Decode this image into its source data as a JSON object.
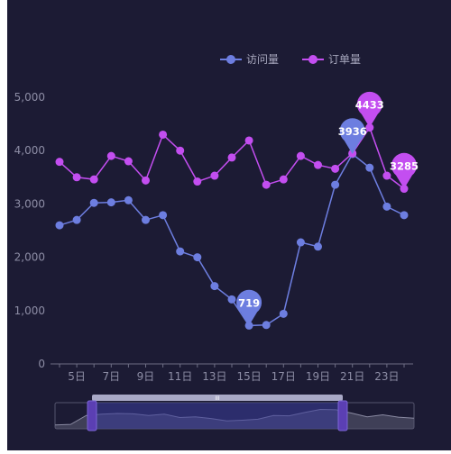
{
  "chart_data": {
    "type": "line",
    "title": "",
    "xlabel": "",
    "ylabel": "",
    "ylim": [
      0,
      5000
    ],
    "yticks": [
      0,
      1000,
      2000,
      3000,
      4000,
      5000
    ],
    "ytick_labels": [
      "0",
      "1,000",
      "2,000",
      "3,000",
      "4,000",
      "5,000"
    ],
    "days": [
      4,
      5,
      6,
      7,
      8,
      9,
      10,
      11,
      12,
      13,
      14,
      15,
      16,
      17,
      18,
      19,
      20,
      21,
      22,
      23,
      24
    ],
    "x_tick_days": [
      5,
      7,
      9,
      11,
      13,
      15,
      17,
      19,
      21,
      23
    ],
    "x_tick_labels": [
      "5日",
      "7日",
      "9日",
      "11日",
      "13日",
      "15日",
      "17日",
      "19日",
      "21日",
      "23日"
    ],
    "grid": false,
    "legend_position": "top-center",
    "series": [
      {
        "name": "访问量",
        "color": "#6d7ee0",
        "values": [
          2600,
          2700,
          3020,
          3030,
          3070,
          2700,
          2790,
          2110,
          2000,
          1460,
          1210,
          719,
          730,
          940,
          2280,
          2200,
          3360,
          3936,
          3680,
          2950,
          2790
        ],
        "markers": [
          {
            "label": "719",
            "day": 15,
            "value": 719
          },
          {
            "label": "3936",
            "day": 21,
            "value": 3936
          }
        ]
      },
      {
        "name": "订单量",
        "color": "#c34ef0",
        "values": [
          3790,
          3500,
          3460,
          3900,
          3800,
          3440,
          4300,
          4000,
          3420,
          3530,
          3870,
          4190,
          3360,
          3460,
          3900,
          3730,
          3660,
          3950,
          4433,
          3530,
          3285
        ],
        "markers": [
          {
            "label": "4433",
            "day": 22,
            "value": 4433
          },
          {
            "label": "3285",
            "day": 24,
            "value": 3285
          }
        ]
      }
    ],
    "data_zoom": {
      "handle_label": "III",
      "preview_values": [
        300,
        380,
        1700,
        1900,
        2000,
        1950,
        1700,
        1900,
        1400,
        1500,
        1250,
        900,
        1000,
        1150,
        1700,
        1650,
        2150,
        2600,
        2550,
        2050,
        1500,
        1800,
        1450,
        1300
      ]
    }
  }
}
